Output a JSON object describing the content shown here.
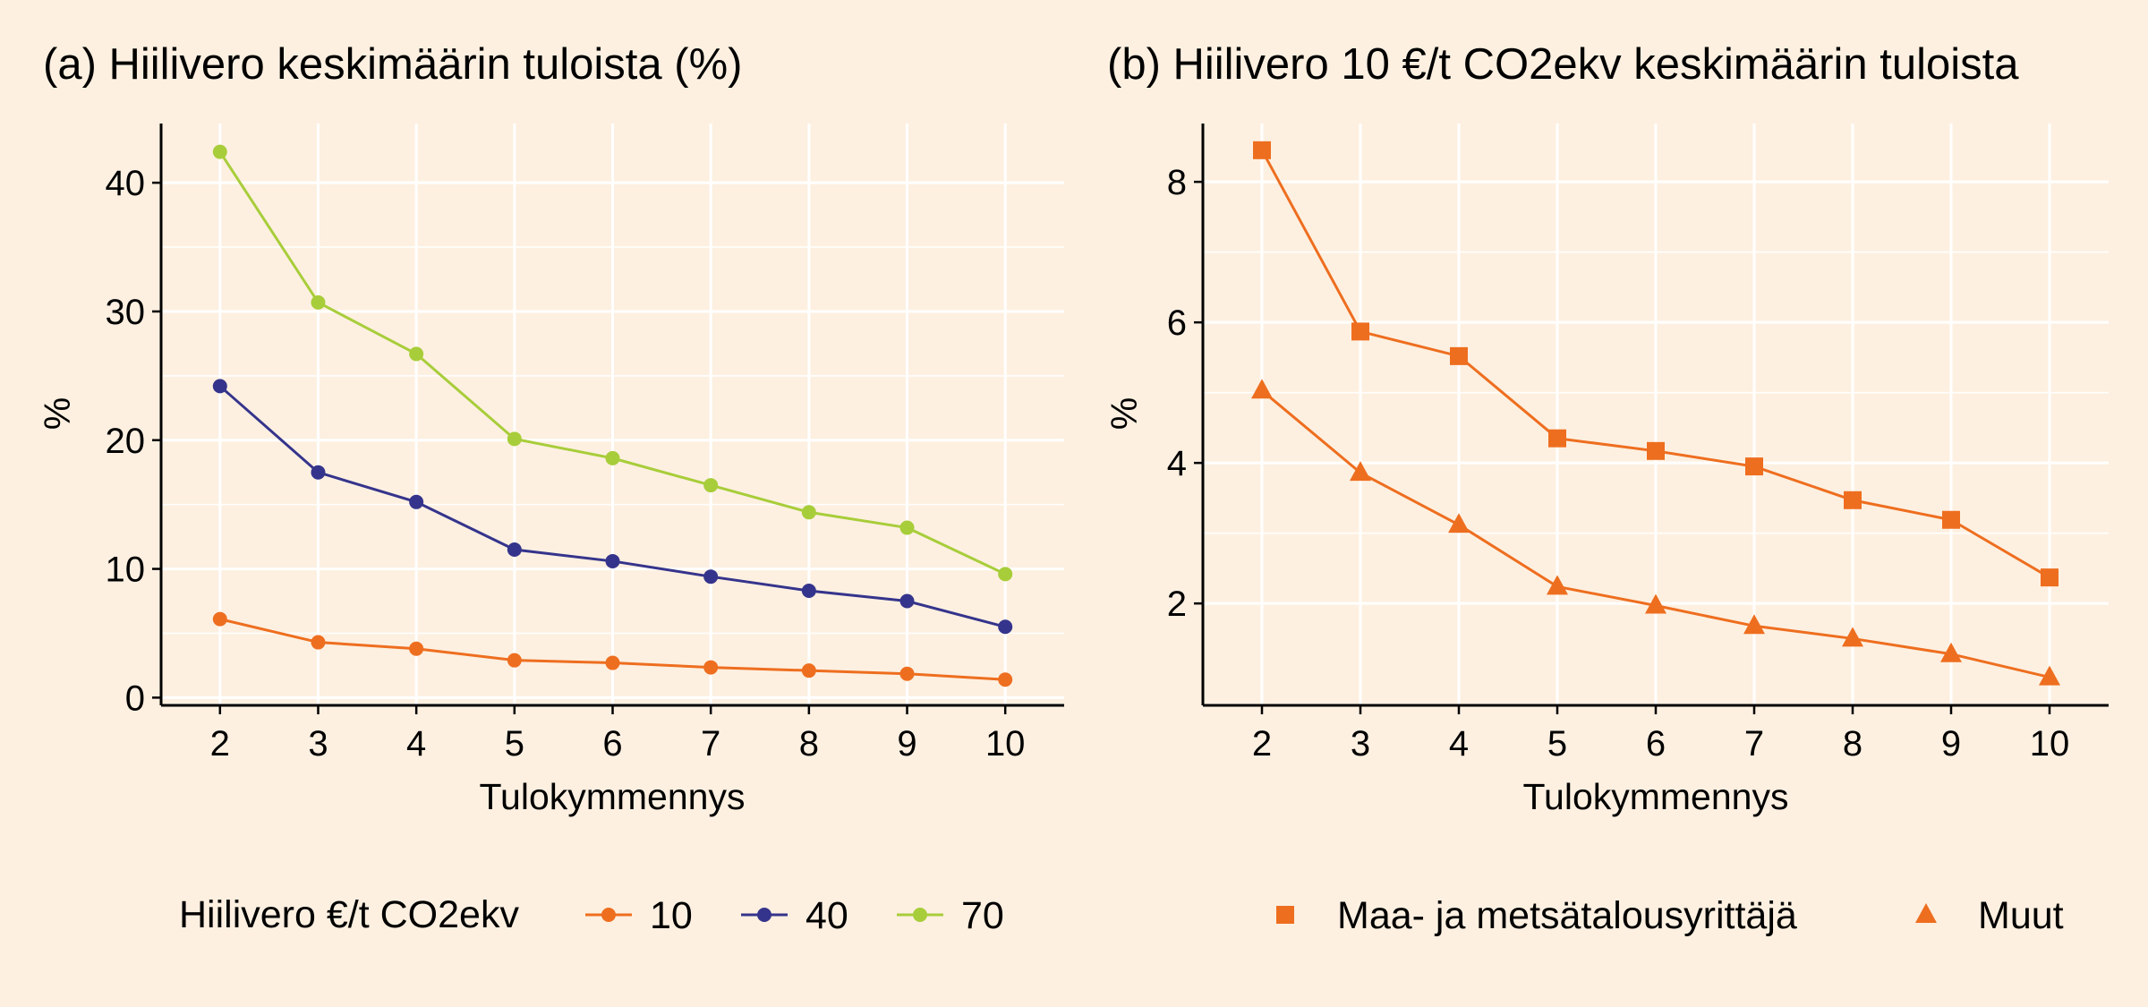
{
  "colors": {
    "background": "#fdf0e1",
    "grid": "#ffffff",
    "axis": "#000000",
    "orange": "#ee6e1f",
    "navy": "#35348c",
    "lime": "#a8cd3a"
  },
  "chart_data": [
    {
      "type": "line",
      "title": "(a) Hiilivero keskimäärin tuloista (%)",
      "xlabel": "Tulokymmennys",
      "ylabel": "%",
      "x": [
        2,
        3,
        4,
        5,
        6,
        7,
        8,
        9,
        10
      ],
      "xticks": [
        "2",
        "3",
        "4",
        "5",
        "6",
        "7",
        "8",
        "9",
        "10"
      ],
      "yticks": [
        0,
        10,
        20,
        30,
        40
      ],
      "ytick_labels": [
        "0",
        "10",
        "20",
        "30",
        "40"
      ],
      "xlim": [
        1.4,
        10.6
      ],
      "ylim": [
        -0.6,
        44.6
      ],
      "grid": true,
      "legend": {
        "position": "bottom",
        "title": "Hiilivero €/t CO2ekv",
        "entries": [
          "10",
          "40",
          "70"
        ]
      },
      "series": [
        {
          "name": "10",
          "color": "#ee6e1f",
          "marker": "circle",
          "values": [
            6.1,
            4.3,
            3.8,
            2.9,
            2.7,
            2.35,
            2.1,
            1.85,
            1.4
          ]
        },
        {
          "name": "40",
          "color": "#35348c",
          "marker": "circle",
          "values": [
            24.2,
            17.5,
            15.2,
            11.5,
            10.6,
            9.4,
            8.3,
            7.5,
            5.5
          ]
        },
        {
          "name": "70",
          "color": "#a8cd3a",
          "marker": "circle",
          "values": [
            42.4,
            30.7,
            26.7,
            20.1,
            18.6,
            16.5,
            14.4,
            13.2,
            9.6
          ]
        }
      ]
    },
    {
      "type": "line",
      "title": "(b) Hiilivero 10 €/t CO2ekv keskimäärin tuloista",
      "xlabel": "Tulokymmennys",
      "ylabel": "%",
      "x": [
        2,
        3,
        4,
        5,
        6,
        7,
        8,
        9,
        10
      ],
      "xticks": [
        "2",
        "3",
        "4",
        "5",
        "6",
        "7",
        "8",
        "9",
        "10"
      ],
      "yticks": [
        2,
        4,
        6,
        8
      ],
      "ytick_labels": [
        "2",
        "4",
        "6",
        "8"
      ],
      "xlim": [
        1.4,
        10.6
      ],
      "ylim": [
        0.55,
        8.83
      ],
      "grid": true,
      "legend": {
        "position": "bottom",
        "title": "",
        "entries": [
          "Maa- ja metsätalousyrittäjä",
          "Muut"
        ]
      },
      "series": [
        {
          "name": "Maa- ja metsätalousyrittäjä",
          "color": "#ee6e1f",
          "marker": "square",
          "values": [
            8.45,
            5.87,
            5.52,
            4.35,
            4.17,
            3.95,
            3.47,
            3.19,
            2.37
          ]
        },
        {
          "name": "Muut",
          "color": "#ee6e1f",
          "marker": "triangle",
          "values": [
            5.03,
            3.86,
            3.12,
            2.24,
            1.97,
            1.68,
            1.5,
            1.28,
            0.95
          ]
        }
      ]
    }
  ]
}
